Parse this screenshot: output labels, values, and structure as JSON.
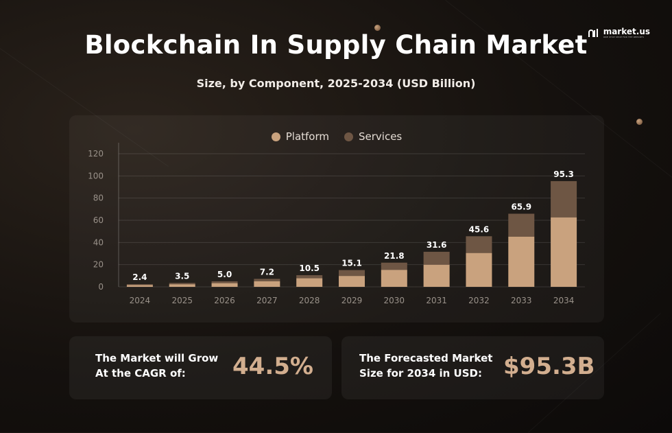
{
  "brand": {
    "name": "market.us",
    "tagline": "ONE STOP SHOP FOR THE REPORTS"
  },
  "header": {
    "title": "Blockchain In Supply Chain Market",
    "subtitle": "Size, by Component, 2025-2034 (USD Billion)"
  },
  "colors": {
    "platform": "#c9a27e",
    "services": "#6e5644",
    "value_text": "#d2ae8f"
  },
  "chart_data": {
    "type": "bar",
    "stacked": true,
    "categories": [
      "2024",
      "2025",
      "2026",
      "2027",
      "2028",
      "2029",
      "2030",
      "2031",
      "2032",
      "2033",
      "2034"
    ],
    "series": [
      {
        "name": "Platform",
        "values": [
          1.6,
          2.3,
          3.3,
          5.0,
          7.7,
          9.8,
          15.3,
          19.9,
          30.5,
          45.2,
          62.6
        ]
      },
      {
        "name": "Services",
        "values": [
          0.8,
          1.2,
          1.7,
          2.2,
          2.8,
          5.3,
          6.5,
          11.7,
          15.1,
          20.7,
          32.7
        ]
      }
    ],
    "totals": [
      "2.4",
      "3.5",
      "5.0",
      "7.2",
      "10.5",
      "15.1",
      "21.8",
      "31.6",
      "45.6",
      "65.9",
      "95.3"
    ],
    "y_ticks": [
      "0",
      "20",
      "40",
      "60",
      "80",
      "100",
      "120"
    ],
    "ylim": [
      0,
      120
    ],
    "xlabel": "",
    "ylabel": "",
    "grid": true,
    "legend_position": "top-center"
  },
  "stats": [
    {
      "label": "The Market will Grow\nAt the CAGR of:",
      "value": "44.5%"
    },
    {
      "label": "The Forecasted Market\nSize for 2034 in USD:",
      "value": "$95.3B"
    }
  ]
}
